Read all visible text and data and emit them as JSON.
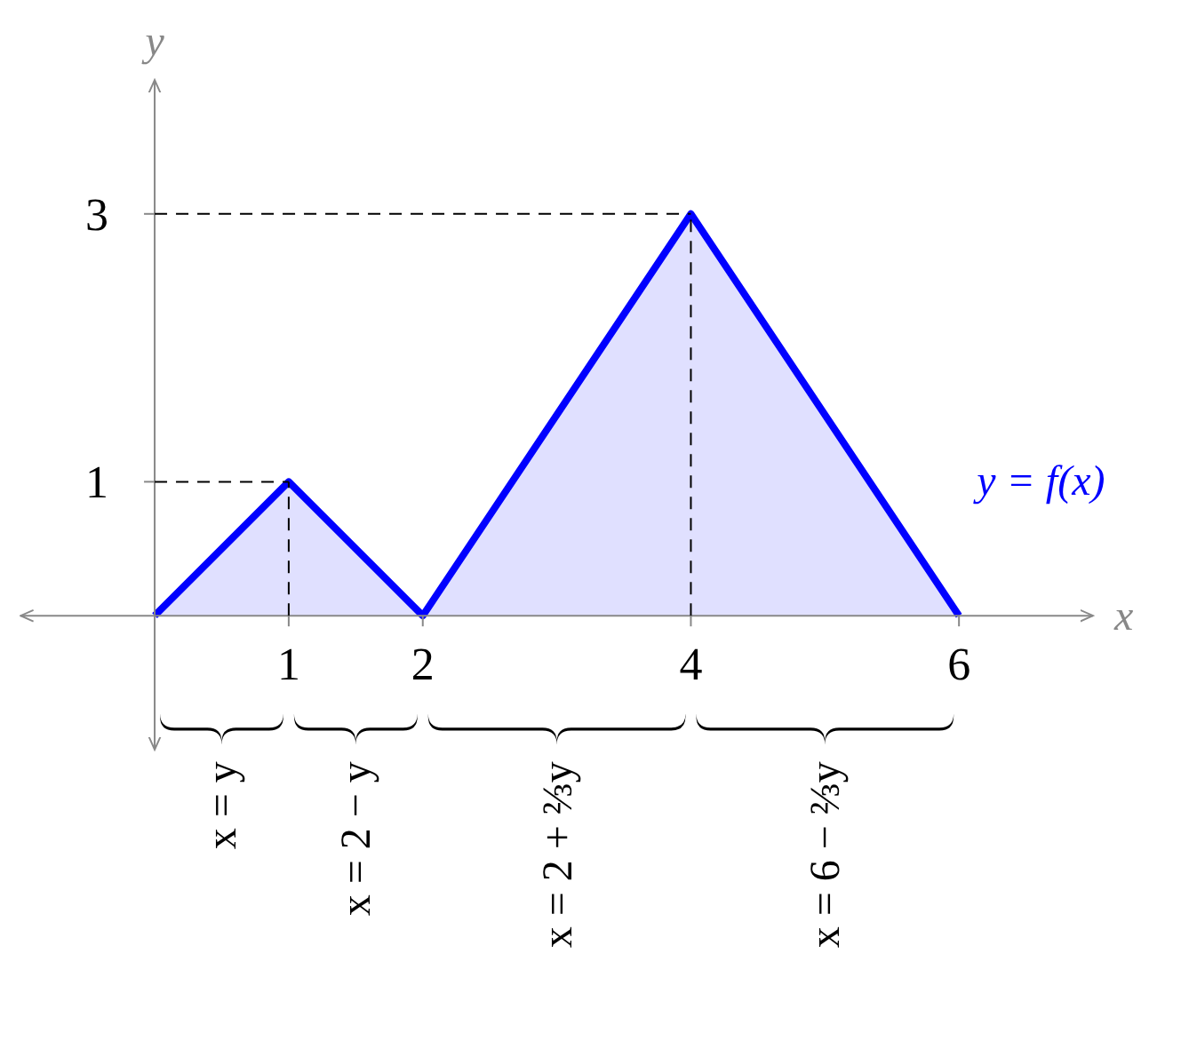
{
  "chart_data": {
    "type": "area",
    "xlabel": "x",
    "ylabel": "y",
    "xlim": [
      -1,
      7
    ],
    "ylim": [
      -1,
      4
    ],
    "xticks": [
      1,
      2,
      4,
      6
    ],
    "yticks": [
      1,
      3
    ],
    "grid": false,
    "legend": false,
    "x": [
      0,
      1,
      2,
      4,
      6
    ],
    "series": [
      {
        "name": "y = f(x)",
        "color": "#0000ff",
        "values": [
          0,
          1,
          0,
          3,
          0
        ]
      }
    ],
    "ref_lines": [
      {
        "axis": "y",
        "value": 1,
        "line_style": "dashed"
      },
      {
        "axis": "y",
        "value": 3,
        "line_style": "dashed"
      },
      {
        "axis": "x",
        "value": 1,
        "line_style": "dashed"
      },
      {
        "axis": "x",
        "value": 4,
        "line_style": "dashed"
      }
    ],
    "annotations": [
      "x = y",
      "x = 2 − y",
      "x = 2 + ⅔y",
      "x = 6 − ⅔y"
    ]
  }
}
